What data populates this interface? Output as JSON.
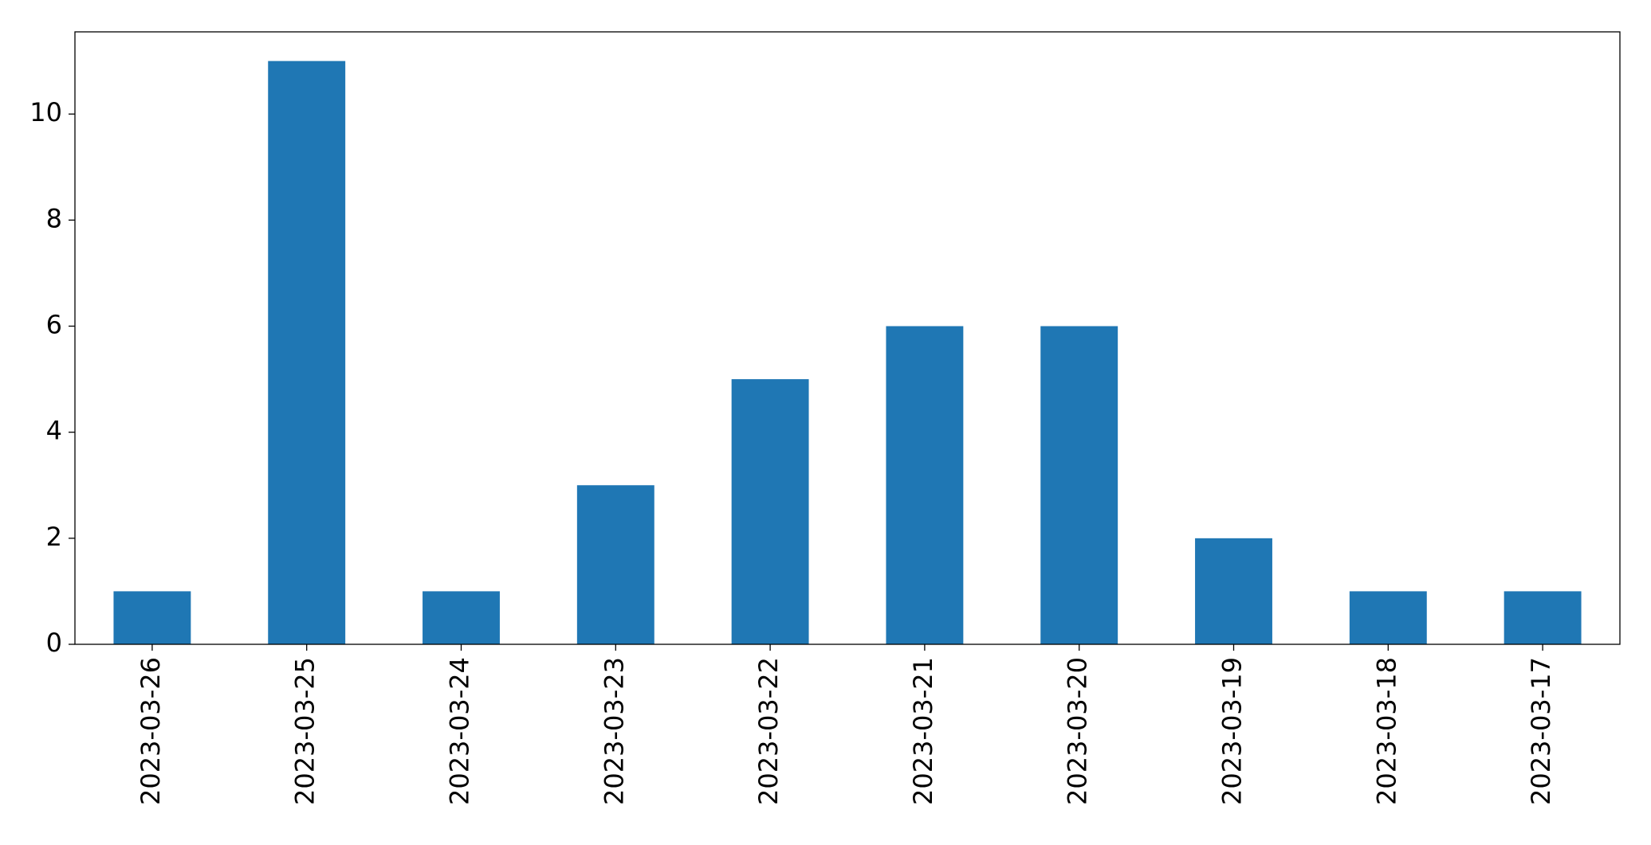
{
  "chart_data": {
    "type": "bar",
    "categories": [
      "2023-03-26",
      "2023-03-25",
      "2023-03-24",
      "2023-03-23",
      "2023-03-22",
      "2023-03-21",
      "2023-03-20",
      "2023-03-19",
      "2023-03-18",
      "2023-03-17"
    ],
    "values": [
      1,
      11,
      1,
      3,
      5,
      6,
      6,
      2,
      1,
      1
    ],
    "color": "#1f77b4",
    "ylim": [
      0,
      11.55
    ],
    "yticks": [
      0,
      2,
      4,
      6,
      8,
      10
    ],
    "grid": false
  }
}
